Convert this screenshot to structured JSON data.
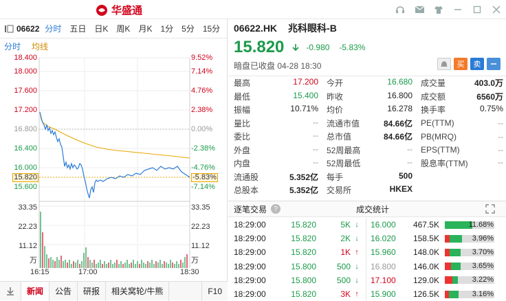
{
  "app": {
    "name": "华盛通"
  },
  "left": {
    "code": "06622",
    "tabs": [
      "分时",
      "五日",
      "日K",
      "周K",
      "月K",
      "1分",
      "5分",
      "15分"
    ],
    "subtabs": [
      "分时",
      "均线"
    ],
    "y_left": [
      "18.400",
      "18.000",
      "17.600",
      "17.200",
      "16.800",
      "16.400",
      "16.000",
      "15.820",
      "15.600",
      "33.35",
      "22.23",
      "11.12",
      "万"
    ],
    "y_right": [
      "9.52%",
      "7.14%",
      "4.76%",
      "2.38%",
      "0.00%",
      "-2.38%",
      "-4.76%",
      "-5.83%",
      "-7.14%",
      "33.35",
      "22.23",
      "11.12",
      "万"
    ],
    "x_labels": [
      "16:15",
      "17:00",
      "18:30"
    ],
    "bottom_tabs": [
      "新闻",
      "公告",
      "研报",
      "相关窝轮/牛熊",
      "F10"
    ]
  },
  "stock": {
    "code": "06622.HK",
    "name": "兆科眼科-B",
    "price": "15.820",
    "change": "-0.980",
    "change_pct": "-5.83%",
    "status": "暗盘已收盘 04-28 18:30",
    "buy_label": "买",
    "sell_label": "卖"
  },
  "stats": [
    [
      [
        "最高",
        "17.200",
        "red"
      ],
      [
        "今开",
        "16.680",
        "green"
      ],
      [
        "成交量",
        "403.0万",
        "bold"
      ]
    ],
    [
      [
        "最低",
        "15.400",
        "green"
      ],
      [
        "昨收",
        "16.800",
        ""
      ],
      [
        "成交额",
        "6560万",
        "bold"
      ]
    ],
    [
      [
        "振幅",
        "10.71%",
        ""
      ],
      [
        "均价",
        "16.278",
        ""
      ],
      [
        "换手率",
        "0.75%",
        ""
      ]
    ],
    [
      [
        "量比",
        "--",
        "gray"
      ],
      [
        "流通市值",
        "84.66亿",
        "bold"
      ],
      [
        "PE(TTM)",
        "--",
        "gray"
      ]
    ],
    [
      [
        "委比",
        "--",
        "gray"
      ],
      [
        "总市值",
        "84.66亿",
        "bold"
      ],
      [
        "PB(MRQ)",
        "--",
        "gray"
      ]
    ],
    [
      [
        "外盘",
        "--",
        "gray"
      ],
      [
        "52周最高",
        "--",
        "gray"
      ],
      [
        "EPS(TTM)",
        "--",
        "gray"
      ]
    ],
    [
      [
        "内盘",
        "--",
        "gray"
      ],
      [
        "52周最低",
        "--",
        "gray"
      ],
      [
        "股息率(TTM)",
        "--",
        "gray"
      ]
    ],
    [
      [
        "流通股",
        "5.352亿",
        "bold"
      ],
      [
        "每手",
        "500",
        "bold"
      ],
      [
        "",
        "",
        ""
      ]
    ],
    [
      [
        "总股本",
        "5.352亿",
        "bold"
      ],
      [
        "交易所",
        "HKEX",
        "bold"
      ],
      [
        "",
        "",
        ""
      ]
    ]
  ],
  "sections": {
    "trades": "逐笔交易",
    "distribution": "成交统计"
  },
  "trades": [
    {
      "time": "18:29:00",
      "price": "15.820",
      "vol": "5K",
      "dir": "down"
    },
    {
      "time": "18:29:00",
      "price": "15.820",
      "vol": "2K",
      "dir": "down"
    },
    {
      "time": "18:29:00",
      "price": "15.820",
      "vol": "1K",
      "dir": "up"
    },
    {
      "time": "18:29:00",
      "price": "15.800",
      "vol": "500",
      "dir": "down"
    },
    {
      "time": "18:29:00",
      "price": "15.800",
      "vol": "500",
      "dir": "down"
    },
    {
      "time": "18:29:00",
      "price": "15.820",
      "vol": "3K",
      "dir": "up"
    }
  ],
  "distribution": [
    {
      "price": "16.000",
      "vol": "467.5K",
      "pct": "11.68%",
      "color": "green",
      "red": 0.0,
      "green": 0.55
    },
    {
      "price": "16.020",
      "vol": "158.5K",
      "pct": "3.96%",
      "color": "green",
      "red": 0.1,
      "green": 0.25
    },
    {
      "price": "15.960",
      "vol": "148.0K",
      "pct": "3.70%",
      "color": "green",
      "red": 0.1,
      "green": 0.22
    },
    {
      "price": "16.800",
      "vol": "146.0K",
      "pct": "3.65%",
      "color": "gray",
      "red": 0.12,
      "green": 0.2
    },
    {
      "price": "17.100",
      "vol": "129.0K",
      "pct": "3.22%",
      "color": "red",
      "red": 0.15,
      "green": 0.12
    },
    {
      "price": "15.900",
      "vol": "126.5K",
      "pct": "3.16%",
      "color": "green",
      "red": 0.08,
      "green": 0.2
    }
  ]
}
